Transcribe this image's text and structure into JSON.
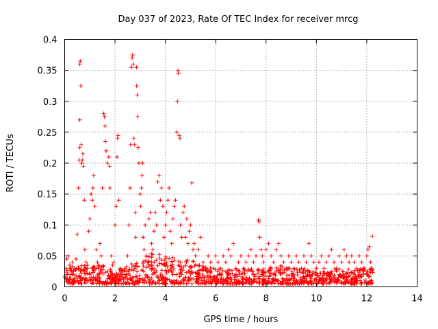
{
  "chart_data": {
    "type": "scatter",
    "title": "Day 037 of 2023, Rate Of TEC Index for receiver mrcg",
    "xlabel": "GPS time / hours",
    "ylabel": "ROTI / TECUs",
    "xlim": [
      0,
      14
    ],
    "ylim": [
      0,
      0.4
    ],
    "x_ticks": [
      0,
      2,
      4,
      6,
      8,
      10,
      12,
      14
    ],
    "x_tick_labels": [
      "0",
      "2",
      "4",
      "6",
      "8",
      "10",
      "12",
      "14"
    ],
    "y_ticks": [
      0,
      0.05,
      0.1,
      0.15,
      0.2,
      0.25,
      0.3,
      0.35,
      0.4
    ],
    "y_tick_labels": [
      "0",
      "0.05",
      "0.1",
      "0.15",
      "0.2",
      "0.25",
      "0.3",
      "0.35",
      "0.4"
    ],
    "grid": true,
    "marker": "plus",
    "series": [
      {
        "name": "ROTI",
        "color": "#ff0000",
        "points": [
          [
            0.02,
            0.015
          ],
          [
            0.05,
            0.03
          ],
          [
            0.08,
            0.045
          ],
          [
            0.1,
            0.02
          ],
          [
            0.15,
            0.05
          ],
          [
            0.2,
            0.035
          ],
          [
            0.25,
            0.02
          ],
          [
            0.3,
            0.04
          ],
          [
            0.35,
            0.025
          ],
          [
            0.4,
            0.03
          ],
          [
            0.45,
            0.045
          ],
          [
            0.5,
            0.085
          ],
          [
            0.55,
            0.16
          ],
          [
            0.58,
            0.205
          ],
          [
            0.6,
            0.225
          ],
          [
            0.6,
            0.27
          ],
          [
            0.6,
            0.36
          ],
          [
            0.62,
            0.365
          ],
          [
            0.64,
            0.325
          ],
          [
            0.66,
            0.23
          ],
          [
            0.68,
            0.2
          ],
          [
            0.7,
            0.205
          ],
          [
            0.72,
            0.215
          ],
          [
            0.75,
            0.195
          ],
          [
            0.78,
            0.14
          ],
          [
            0.8,
            0.06
          ],
          [
            0.85,
            0.04
          ],
          [
            0.9,
            0.03
          ],
          [
            0.95,
            0.09
          ],
          [
            1.0,
            0.11
          ],
          [
            1.05,
            0.15
          ],
          [
            1.1,
            0.14
          ],
          [
            1.12,
            0.16
          ],
          [
            1.15,
            0.18
          ],
          [
            1.2,
            0.13
          ],
          [
            1.25,
            0.06
          ],
          [
            1.3,
            0.04
          ],
          [
            1.35,
            0.035
          ],
          [
            1.4,
            0.07
          ],
          [
            1.45,
            0.05
          ],
          [
            1.5,
            0.16
          ],
          [
            1.55,
            0.28
          ],
          [
            1.58,
            0.275
          ],
          [
            1.6,
            0.26
          ],
          [
            1.62,
            0.235
          ],
          [
            1.65,
            0.22
          ],
          [
            1.7,
            0.2
          ],
          [
            1.75,
            0.21
          ],
          [
            1.78,
            0.195
          ],
          [
            1.8,
            0.16
          ],
          [
            1.85,
            0.05
          ],
          [
            1.9,
            0.035
          ],
          [
            1.95,
            0.04
          ],
          [
            2.0,
            0.1
          ],
          [
            2.05,
            0.13
          ],
          [
            2.08,
            0.21
          ],
          [
            2.1,
            0.24
          ],
          [
            2.12,
            0.245
          ],
          [
            2.15,
            0.14
          ],
          [
            2.2,
            0.03
          ],
          [
            2.25,
            0.02
          ],
          [
            2.3,
            0.015
          ],
          [
            2.35,
            0.025
          ],
          [
            2.4,
            0.03
          ],
          [
            2.45,
            0.02
          ],
          [
            2.5,
            0.05
          ],
          [
            2.55,
            0.1
          ],
          [
            2.6,
            0.16
          ],
          [
            2.62,
            0.23
          ],
          [
            2.65,
            0.355
          ],
          [
            2.68,
            0.37
          ],
          [
            2.7,
            0.375
          ],
          [
            2.72,
            0.36
          ],
          [
            2.75,
            0.24
          ],
          [
            2.78,
            0.23
          ],
          [
            2.8,
            0.12
          ],
          [
            2.82,
            0.08
          ],
          [
            2.85,
            0.355
          ],
          [
            2.86,
            0.325
          ],
          [
            2.88,
            0.31
          ],
          [
            2.9,
            0.275
          ],
          [
            2.92,
            0.225
          ],
          [
            2.95,
            0.2
          ],
          [
            3.0,
            0.15
          ],
          [
            3.02,
            0.13
          ],
          [
            3.05,
            0.16
          ],
          [
            3.08,
            0.18
          ],
          [
            3.1,
            0.2
          ],
          [
            3.12,
            0.08
          ],
          [
            3.15,
            0.06
          ],
          [
            3.2,
            0.1
          ],
          [
            3.25,
            0.05
          ],
          [
            3.3,
            0.04
          ],
          [
            3.35,
            0.11
          ],
          [
            3.4,
            0.12
          ],
          [
            3.45,
            0.07
          ],
          [
            3.5,
            0.06
          ],
          [
            3.55,
            0.09
          ],
          [
            3.6,
            0.12
          ],
          [
            3.65,
            0.1
          ],
          [
            3.7,
            0.17
          ],
          [
            3.75,
            0.18
          ],
          [
            3.8,
            0.14
          ],
          [
            3.85,
            0.16
          ],
          [
            3.9,
            0.13
          ],
          [
            3.95,
            0.08
          ],
          [
            4.0,
            0.1
          ],
          [
            4.05,
            0.12
          ],
          [
            4.1,
            0.14
          ],
          [
            4.15,
            0.16
          ],
          [
            4.2,
            0.09
          ],
          [
            4.25,
            0.07
          ],
          [
            4.3,
            0.11
          ],
          [
            4.35,
            0.13
          ],
          [
            4.4,
            0.14
          ],
          [
            4.45,
            0.25
          ],
          [
            4.48,
            0.3
          ],
          [
            4.5,
            0.35
          ],
          [
            4.52,
            0.345
          ],
          [
            4.55,
            0.245
          ],
          [
            4.58,
            0.24
          ],
          [
            4.6,
            0.1
          ],
          [
            4.65,
            0.08
          ],
          [
            4.7,
            0.12
          ],
          [
            4.75,
            0.13
          ],
          [
            4.8,
            0.08
          ],
          [
            4.85,
            0.11
          ],
          [
            4.9,
            0.07
          ],
          [
            4.95,
            0.09
          ],
          [
            5.0,
            0.1
          ],
          [
            5.05,
            0.168
          ],
          [
            5.1,
            0.06
          ],
          [
            5.15,
            0.07
          ],
          [
            5.2,
            0.05
          ],
          [
            5.3,
            0.06
          ],
          [
            5.4,
            0.08
          ],
          [
            5.5,
            0.04
          ],
          [
            5.6,
            0.03
          ],
          [
            5.7,
            0.05
          ],
          [
            5.8,
            0.04
          ],
          [
            5.9,
            0.03
          ],
          [
            6.0,
            0.05
          ],
          [
            6.1,
            0.04
          ],
          [
            6.2,
            0.03
          ],
          [
            6.3,
            0.05
          ],
          [
            6.4,
            0.04
          ],
          [
            6.5,
            0.06
          ],
          [
            6.6,
            0.05
          ],
          [
            6.7,
            0.07
          ],
          [
            6.8,
            0.03
          ],
          [
            6.9,
            0.04
          ],
          [
            7.0,
            0.05
          ],
          [
            7.1,
            0.03
          ],
          [
            7.2,
            0.04
          ],
          [
            7.3,
            0.05
          ],
          [
            7.4,
            0.06
          ],
          [
            7.5,
            0.04
          ],
          [
            7.6,
            0.05
          ],
          [
            7.7,
            0.108
          ],
          [
            7.72,
            0.105
          ],
          [
            7.75,
            0.08
          ],
          [
            7.8,
            0.06
          ],
          [
            7.85,
            0.05
          ],
          [
            7.9,
            0.04
          ],
          [
            8.0,
            0.06
          ],
          [
            8.1,
            0.07
          ],
          [
            8.2,
            0.05
          ],
          [
            8.3,
            0.04
          ],
          [
            8.4,
            0.06
          ],
          [
            8.5,
            0.07
          ],
          [
            8.6,
            0.05
          ],
          [
            8.7,
            0.04
          ],
          [
            8.8,
            0.03
          ],
          [
            8.9,
            0.05
          ],
          [
            9.0,
            0.04
          ],
          [
            9.1,
            0.03
          ],
          [
            9.2,
            0.05
          ],
          [
            9.3,
            0.04
          ],
          [
            9.4,
            0.03
          ],
          [
            9.5,
            0.05
          ],
          [
            9.6,
            0.04
          ],
          [
            9.7,
            0.07
          ],
          [
            9.8,
            0.05
          ],
          [
            9.9,
            0.04
          ],
          [
            10.0,
            0.03
          ],
          [
            10.1,
            0.04
          ],
          [
            10.2,
            0.05
          ],
          [
            10.3,
            0.03
          ],
          [
            10.4,
            0.04
          ],
          [
            10.5,
            0.05
          ],
          [
            10.6,
            0.06
          ],
          [
            10.7,
            0.04
          ],
          [
            10.8,
            0.03
          ],
          [
            10.9,
            0.05
          ],
          [
            11.0,
            0.04
          ],
          [
            11.1,
            0.06
          ],
          [
            11.2,
            0.05
          ],
          [
            11.3,
            0.04
          ],
          [
            11.4,
            0.05
          ],
          [
            11.5,
            0.04
          ],
          [
            11.6,
            0.03
          ],
          [
            11.7,
            0.05
          ],
          [
            11.8,
            0.04
          ],
          [
            11.9,
            0.03
          ],
          [
            12.0,
            0.05
          ],
          [
            12.05,
            0.06
          ],
          [
            12.1,
            0.065
          ],
          [
            12.15,
            0.04
          ],
          [
            12.2,
            0.03
          ],
          [
            12.22,
            0.082
          ]
        ],
        "dense_band": [
          [
            0.0,
            0.005,
            0.03
          ],
          [
            0.5,
            0.005,
            0.035
          ],
          [
            1.0,
            0.005,
            0.035
          ],
          [
            1.5,
            0.005,
            0.035
          ],
          [
            2.0,
            0.005,
            0.025
          ],
          [
            2.5,
            0.005,
            0.035
          ],
          [
            3.0,
            0.005,
            0.045
          ],
          [
            3.5,
            0.005,
            0.055
          ],
          [
            4.0,
            0.005,
            0.055
          ],
          [
            4.5,
            0.005,
            0.05
          ],
          [
            5.0,
            0.005,
            0.045
          ],
          [
            5.5,
            0.005,
            0.035
          ],
          [
            6.0,
            0.005,
            0.03
          ],
          [
            6.5,
            0.005,
            0.03
          ],
          [
            7.0,
            0.005,
            0.028
          ],
          [
            7.5,
            0.005,
            0.03
          ],
          [
            8.0,
            0.005,
            0.035
          ],
          [
            8.5,
            0.005,
            0.035
          ],
          [
            9.0,
            0.005,
            0.03
          ],
          [
            9.5,
            0.005,
            0.03
          ],
          [
            10.0,
            0.005,
            0.025
          ],
          [
            10.5,
            0.005,
            0.028
          ],
          [
            11.0,
            0.005,
            0.03
          ],
          [
            11.5,
            0.005,
            0.028
          ],
          [
            12.0,
            0.005,
            0.03
          ],
          [
            12.25,
            0.005,
            0.03
          ]
        ]
      }
    ]
  }
}
